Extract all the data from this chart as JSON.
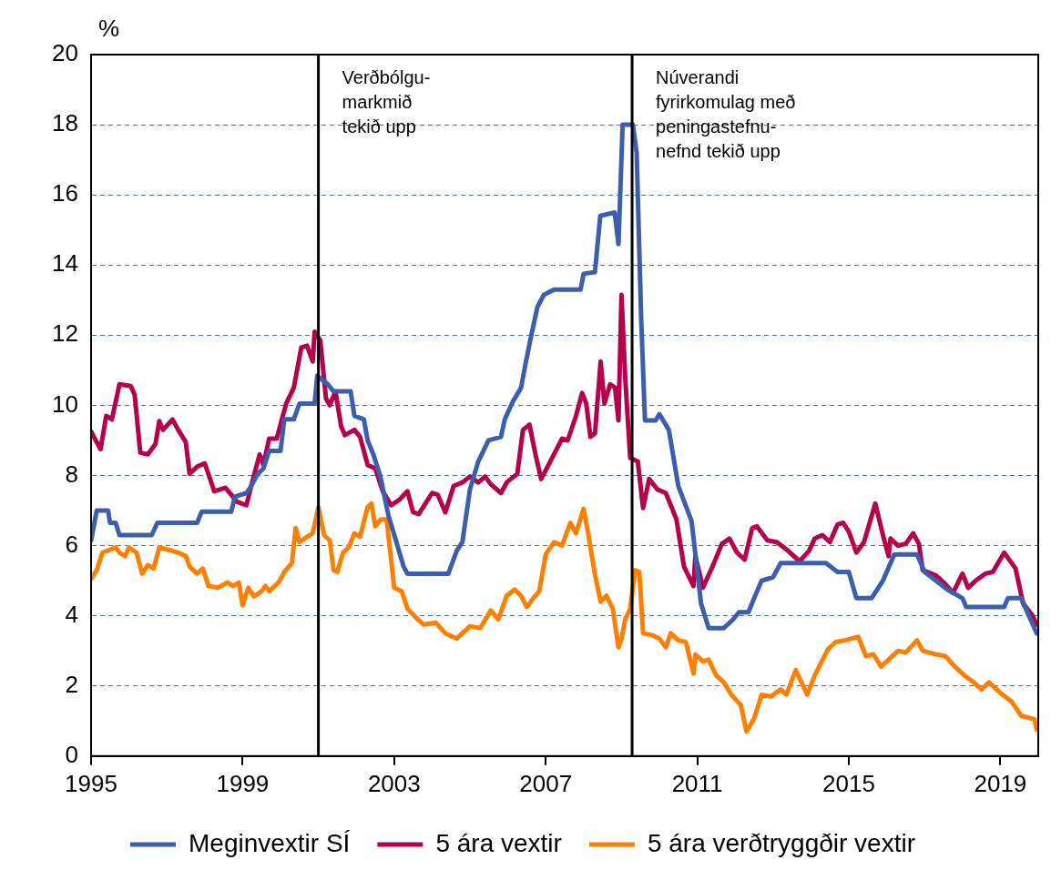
{
  "chart_data": {
    "type": "line",
    "ylabel": "%",
    "xlim": [
      1995,
      2020
    ],
    "xticks": [
      1995,
      1999,
      2003,
      2007,
      2011,
      2015,
      2019
    ],
    "ylim": [
      0,
      20
    ],
    "yticks": [
      0,
      2,
      4,
      6,
      8,
      10,
      12,
      14,
      16,
      18,
      20
    ],
    "grid": "y",
    "legend": "bottom",
    "marker": "none",
    "line_style": "solid",
    "ref_lines": [
      {
        "axis": "x",
        "value": 2001.0,
        "label": "Verðbólgu-\nmarkmið\ntekið upp",
        "color": "#000000"
      },
      {
        "axis": "x",
        "value": 2009.28,
        "label": "Núverandi\nfyrirkomulag með\npeningastefnu-\nnefnd tekið upp",
        "color": "#000000"
      }
    ],
    "series": [
      {
        "name": "Meginvextir SÍ",
        "color": "#3c5eab",
        "x": [
          1995.0,
          1995.15,
          1995.45,
          1995.5,
          1995.65,
          1995.75,
          1996.6,
          1996.75,
          1997.8,
          1997.92,
          1998.7,
          1998.8,
          1999.1,
          1999.2,
          1999.4,
          1999.55,
          1999.7,
          2000.0,
          2000.1,
          2000.35,
          2000.5,
          2000.9,
          2000.97,
          2001.07,
          2001.25,
          2001.4,
          2001.85,
          2001.95,
          2002.2,
          2002.3,
          2002.45,
          2002.63,
          2002.85,
          2003.1,
          2003.25,
          2003.35,
          2004.43,
          2004.65,
          2004.8,
          2005.0,
          2005.22,
          2005.49,
          2005.82,
          2005.92,
          2006.13,
          2006.35,
          2006.47,
          2006.62,
          2006.78,
          2006.95,
          2007.22,
          2007.92,
          2008.0,
          2008.3,
          2008.44,
          2008.82,
          2008.92,
          2009.03,
          2009.3,
          2009.4,
          2009.52,
          2009.62,
          2009.9,
          2010.0,
          2010.25,
          2010.5,
          2010.85,
          2011.1,
          2011.3,
          2011.7,
          2011.95,
          2012.1,
          2012.35,
          2012.5,
          2012.7,
          2013.0,
          2013.2,
          2014.4,
          2014.7,
          2015.0,
          2015.2,
          2015.6,
          2015.9,
          2016.2,
          2016.8,
          2017.0,
          2017.3,
          2017.6,
          2018.0,
          2018.1,
          2019.1,
          2019.2,
          2019.55,
          2019.96
        ],
        "values": [
          6.15,
          7.0,
          7.0,
          6.65,
          6.65,
          6.3,
          6.3,
          6.65,
          6.65,
          6.97,
          6.97,
          7.4,
          7.5,
          7.65,
          8.05,
          8.2,
          8.7,
          8.7,
          9.6,
          9.6,
          10.05,
          10.05,
          10.85,
          10.75,
          10.6,
          10.4,
          10.4,
          9.7,
          9.6,
          9.0,
          8.6,
          8.0,
          6.85,
          5.95,
          5.4,
          5.2,
          5.2,
          5.85,
          6.1,
          7.6,
          8.4,
          9.0,
          9.1,
          9.6,
          10.1,
          10.5,
          11.2,
          12.0,
          12.8,
          13.15,
          13.3,
          13.3,
          13.75,
          13.8,
          15.4,
          15.5,
          14.6,
          18.0,
          18.0,
          17.2,
          12.45,
          9.57,
          9.57,
          9.75,
          9.3,
          7.7,
          6.7,
          4.35,
          3.65,
          3.65,
          3.9,
          4.1,
          4.1,
          4.5,
          5.0,
          5.1,
          5.5,
          5.5,
          5.25,
          5.25,
          4.5,
          4.5,
          5.0,
          5.75,
          5.75,
          5.25,
          5.0,
          4.75,
          4.5,
          4.25,
          4.25,
          4.5,
          4.5,
          3.5
        ]
      },
      {
        "name": "5 ára vextir",
        "color": "#b5004b",
        "x": [
          1995.0,
          1995.25,
          1995.4,
          1995.55,
          1995.75,
          1996.05,
          1996.15,
          1996.3,
          1996.5,
          1996.7,
          1996.8,
          1996.9,
          1997.15,
          1997.3,
          1997.5,
          1997.6,
          1997.8,
          1998.0,
          1998.25,
          1998.55,
          1998.85,
          1999.1,
          1999.25,
          1999.45,
          1999.55,
          1999.7,
          1999.9,
          2000.15,
          2000.35,
          2000.55,
          2000.7,
          2000.85,
          2000.9,
          2001.05,
          2001.2,
          2001.3,
          2001.45,
          2001.6,
          2001.7,
          2001.95,
          2002.1,
          2002.3,
          2002.5,
          2002.7,
          2002.92,
          2003.13,
          2003.35,
          2003.5,
          2003.65,
          2004.0,
          2004.15,
          2004.35,
          2004.57,
          2004.8,
          2005.0,
          2005.22,
          2005.4,
          2005.55,
          2005.82,
          2005.97,
          2006.25,
          2006.4,
          2006.57,
          2006.73,
          2006.88,
          2007.17,
          2007.43,
          2007.58,
          2007.8,
          2007.96,
          2008.07,
          2008.18,
          2008.3,
          2008.45,
          2008.55,
          2008.7,
          2008.83,
          2008.92,
          2009.0,
          2009.1,
          2009.23,
          2009.43,
          2009.57,
          2009.73,
          2009.95,
          2010.17,
          2010.45,
          2010.65,
          2010.9,
          2010.95,
          2011.15,
          2011.4,
          2011.65,
          2011.85,
          2012.05,
          2012.25,
          2012.45,
          2012.57,
          2012.85,
          2013.1,
          2013.4,
          2013.7,
          2013.95,
          2014.1,
          2014.3,
          2014.5,
          2014.7,
          2014.85,
          2015.0,
          2015.2,
          2015.4,
          2015.7,
          2015.9,
          2016.05,
          2016.1,
          2016.3,
          2016.5,
          2016.7,
          2016.85,
          2016.95,
          2017.3,
          2017.55,
          2017.75,
          2018.0,
          2018.15,
          2018.35,
          2018.6,
          2018.8,
          2019.1,
          2019.4,
          2019.6,
          2019.85,
          2019.96
        ],
        "values": [
          9.25,
          8.75,
          9.7,
          9.6,
          10.6,
          10.55,
          10.3,
          8.65,
          8.6,
          8.9,
          9.55,
          9.3,
          9.6,
          9.3,
          8.95,
          8.05,
          8.25,
          8.35,
          7.55,
          7.65,
          7.25,
          7.15,
          7.8,
          8.6,
          8.3,
          9.05,
          9.05,
          10.05,
          10.5,
          11.65,
          11.7,
          11.25,
          12.1,
          11.85,
          10.2,
          10.0,
          10.4,
          9.4,
          9.15,
          9.3,
          9.1,
          8.3,
          8.2,
          7.55,
          7.15,
          7.3,
          7.55,
          6.95,
          6.9,
          7.5,
          7.45,
          6.95,
          7.7,
          7.8,
          7.97,
          7.8,
          7.97,
          7.75,
          7.5,
          7.8,
          8.05,
          9.3,
          9.45,
          8.6,
          7.9,
          8.5,
          9.05,
          9.0,
          9.7,
          10.35,
          10.05,
          9.1,
          9.2,
          11.25,
          10.05,
          10.6,
          10.5,
          9.57,
          13.15,
          10.75,
          8.5,
          8.4,
          7.07,
          7.9,
          7.6,
          7.5,
          6.75,
          5.4,
          4.85,
          5.7,
          4.8,
          5.4,
          6.05,
          6.2,
          5.8,
          5.6,
          6.5,
          6.55,
          6.15,
          6.1,
          5.85,
          5.55,
          5.85,
          6.2,
          6.3,
          6.1,
          6.6,
          6.65,
          6.4,
          5.8,
          6.1,
          7.2,
          6.3,
          5.7,
          6.2,
          6.0,
          6.05,
          6.35,
          6.05,
          5.3,
          5.15,
          4.9,
          4.65,
          5.2,
          4.8,
          5.0,
          5.2,
          5.25,
          5.8,
          5.35,
          4.35,
          4.0,
          3.75
        ]
      },
      {
        "name": "5 ára verðtryggðir vextir",
        "color": "#ff8000",
        "x": [
          1995.0,
          1995.15,
          1995.3,
          1995.65,
          1995.75,
          1995.9,
          1996.0,
          1996.2,
          1996.35,
          1996.5,
          1996.65,
          1996.8,
          1997.15,
          1997.3,
          1997.5,
          1997.6,
          1997.8,
          1997.95,
          1998.1,
          1998.35,
          1998.6,
          1998.75,
          1998.9,
          1999.0,
          1999.15,
          1999.3,
          1999.5,
          1999.6,
          1999.7,
          1999.95,
          2000.1,
          2000.3,
          2000.4,
          2000.5,
          2000.7,
          2000.85,
          2001.0,
          2001.15,
          2001.3,
          2001.4,
          2001.5,
          2001.65,
          2001.8,
          2001.95,
          2002.1,
          2002.3,
          2002.4,
          2002.5,
          2002.65,
          2002.8,
          2002.92,
          2003.0,
          2003.2,
          2003.35,
          2003.62,
          2003.78,
          2004.1,
          2004.35,
          2004.65,
          2005.0,
          2005.27,
          2005.55,
          2005.75,
          2005.97,
          2006.18,
          2006.35,
          2006.5,
          2006.67,
          2006.83,
          2007.0,
          2007.22,
          2007.43,
          2007.65,
          2007.8,
          2008.0,
          2008.12,
          2008.3,
          2008.45,
          2008.6,
          2008.77,
          2008.92,
          2009.0,
          2009.1,
          2009.23,
          2009.36,
          2009.47,
          2009.57,
          2009.8,
          2010.0,
          2010.17,
          2010.3,
          2010.5,
          2010.7,
          2010.9,
          2010.95,
          2011.15,
          2011.3,
          2011.5,
          2011.7,
          2011.9,
          2012.15,
          2012.3,
          2012.5,
          2012.7,
          2012.95,
          2013.2,
          2013.35,
          2013.6,
          2013.9,
          2014.1,
          2014.45,
          2014.65,
          2014.9,
          2015.25,
          2015.45,
          2015.65,
          2015.85,
          2016.05,
          2016.3,
          2016.5,
          2016.8,
          2016.95,
          2017.3,
          2017.55,
          2017.8,
          2018.05,
          2018.3,
          2018.5,
          2018.7,
          2019.0,
          2019.3,
          2019.55,
          2019.9,
          2019.96
        ],
        "values": [
          5.05,
          5.3,
          5.8,
          5.95,
          5.8,
          5.7,
          5.95,
          5.8,
          5.2,
          5.45,
          5.35,
          5.95,
          5.85,
          5.8,
          5.7,
          5.4,
          5.2,
          5.35,
          4.85,
          4.8,
          4.95,
          4.85,
          4.95,
          4.3,
          4.8,
          4.55,
          4.7,
          4.85,
          4.7,
          4.95,
          5.25,
          5.5,
          6.5,
          6.1,
          6.25,
          6.35,
          7.1,
          6.3,
          6.15,
          5.3,
          5.25,
          5.8,
          5.95,
          6.35,
          6.25,
          7.1,
          7.2,
          6.55,
          6.75,
          6.75,
          5.6,
          4.8,
          4.7,
          4.2,
          3.9,
          3.75,
          3.8,
          3.5,
          3.35,
          3.7,
          3.65,
          4.15,
          3.9,
          4.57,
          4.75,
          4.57,
          4.25,
          4.5,
          4.7,
          5.75,
          6.1,
          6.0,
          6.65,
          6.35,
          7.05,
          6.35,
          5.17,
          4.4,
          4.57,
          4.2,
          3.1,
          3.35,
          3.9,
          4.2,
          5.3,
          5.25,
          3.5,
          3.45,
          3.35,
          3.1,
          3.5,
          3.3,
          3.25,
          2.35,
          2.9,
          2.7,
          2.75,
          2.3,
          2.1,
          1.75,
          1.45,
          0.7,
          1.07,
          1.75,
          1.7,
          1.9,
          1.75,
          2.45,
          1.75,
          2.3,
          3.05,
          3.25,
          3.3,
          3.4,
          2.85,
          2.9,
          2.55,
          2.75,
          3.0,
          2.95,
          3.3,
          3.0,
          2.9,
          2.85,
          2.55,
          2.3,
          2.1,
          1.9,
          2.1,
          1.8,
          1.55,
          1.15,
          1.05,
          0.75
        ]
      }
    ]
  }
}
